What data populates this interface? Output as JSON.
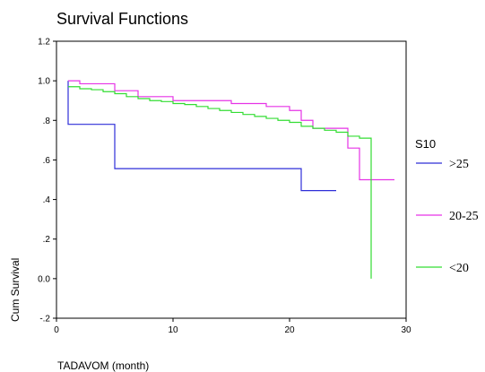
{
  "chart_data": {
    "type": "line",
    "step": true,
    "title": "Survival Functions",
    "xlabel": "TADAVOM (month)",
    "ylabel": "Cum Survival",
    "xlim": [
      0,
      30
    ],
    "ylim": [
      -0.2,
      1.2
    ],
    "xticks": [
      0,
      10,
      20,
      30
    ],
    "yticks": [
      {
        "value": -0.2,
        "label": "-.2"
      },
      {
        "value": 0.0,
        "label": "0.0"
      },
      {
        "value": 0.2,
        "label": ".2"
      },
      {
        "value": 0.4,
        "label": ".4"
      },
      {
        "value": 0.6,
        "label": ".6"
      },
      {
        "value": 0.8,
        "label": ".8"
      },
      {
        "value": 1.0,
        "label": "1.0"
      },
      {
        "value": 1.2,
        "label": "1.2"
      }
    ],
    "grid": false,
    "legend": {
      "title": "S10",
      "position": "right"
    },
    "series": [
      {
        "name": ">25",
        "color": "#2e2ed8",
        "x": [
          1,
          1,
          5,
          21,
          24
        ],
        "y": [
          1.0,
          0.78,
          0.556,
          0.445,
          0.445
        ]
      },
      {
        "name": "20-25",
        "color": "#e633e6",
        "x": [
          1,
          2,
          5,
          7,
          10,
          15,
          18,
          20,
          21,
          22,
          25,
          26,
          29
        ],
        "y": [
          1.0,
          0.985,
          0.95,
          0.92,
          0.9,
          0.885,
          0.87,
          0.85,
          0.8,
          0.76,
          0.66,
          0.5,
          0.5
        ],
        "tail_end": true
      },
      {
        "name": "<20",
        "color": "#33dd33",
        "x": [
          1,
          2,
          3,
          4,
          5,
          6,
          7,
          8,
          9,
          10,
          11,
          12,
          13,
          14,
          15,
          16,
          17,
          18,
          19,
          20,
          21,
          22,
          23,
          24,
          25,
          26,
          27
        ],
        "y": [
          0.97,
          0.96,
          0.955,
          0.945,
          0.935,
          0.92,
          0.91,
          0.9,
          0.895,
          0.885,
          0.88,
          0.87,
          0.86,
          0.85,
          0.84,
          0.83,
          0.82,
          0.81,
          0.8,
          0.79,
          0.77,
          0.76,
          0.75,
          0.74,
          0.72,
          0.71,
          0.0
        ]
      }
    ]
  }
}
